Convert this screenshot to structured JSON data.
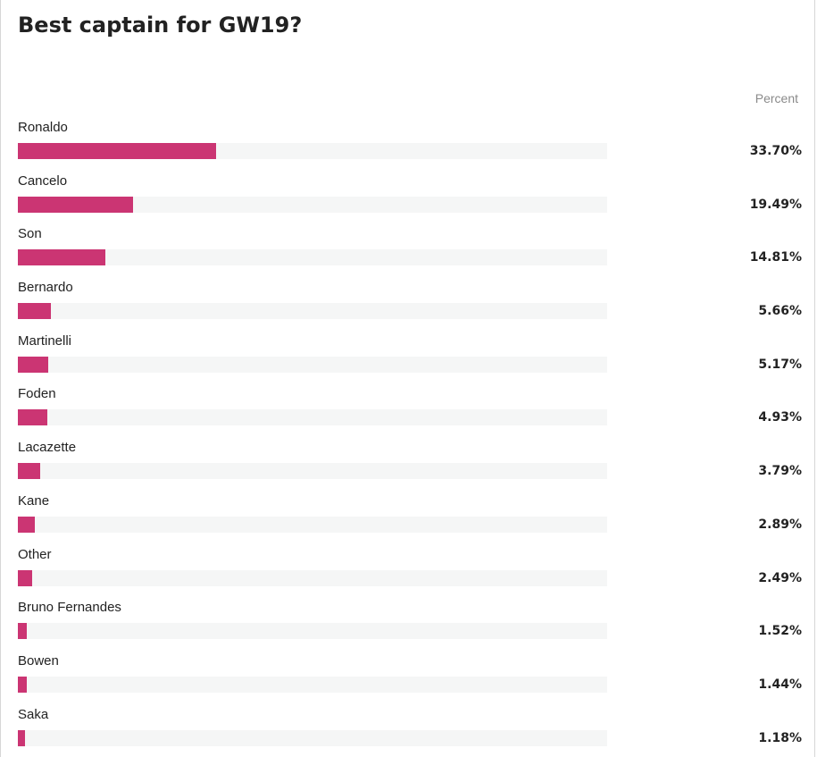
{
  "title": "Best captain for GW19?",
  "column_header": "Percent",
  "colors": {
    "bar": "#cb3573",
    "track": "#f5f6f6"
  },
  "chart_data": {
    "type": "bar",
    "orientation": "horizontal",
    "title": "Best captain for GW19?",
    "value_header": "Percent",
    "xlim": [
      0,
      100
    ],
    "grid": false,
    "categories": [
      "Ronaldo",
      "Cancelo",
      "Son",
      "Bernardo",
      "Martinelli",
      "Foden",
      "Lacazette",
      "Kane",
      "Other",
      "Bruno Fernandes",
      "Bowen",
      "Saka"
    ],
    "values": [
      33.7,
      19.49,
      14.81,
      5.66,
      5.17,
      4.93,
      3.79,
      2.89,
      2.49,
      1.52,
      1.44,
      1.18
    ],
    "value_labels": [
      "33.70%",
      "19.49%",
      "14.81%",
      "5.66%",
      "5.17%",
      "4.93%",
      "3.79%",
      "2.89%",
      "2.49%",
      "1.52%",
      "1.44%",
      "1.18%"
    ]
  }
}
